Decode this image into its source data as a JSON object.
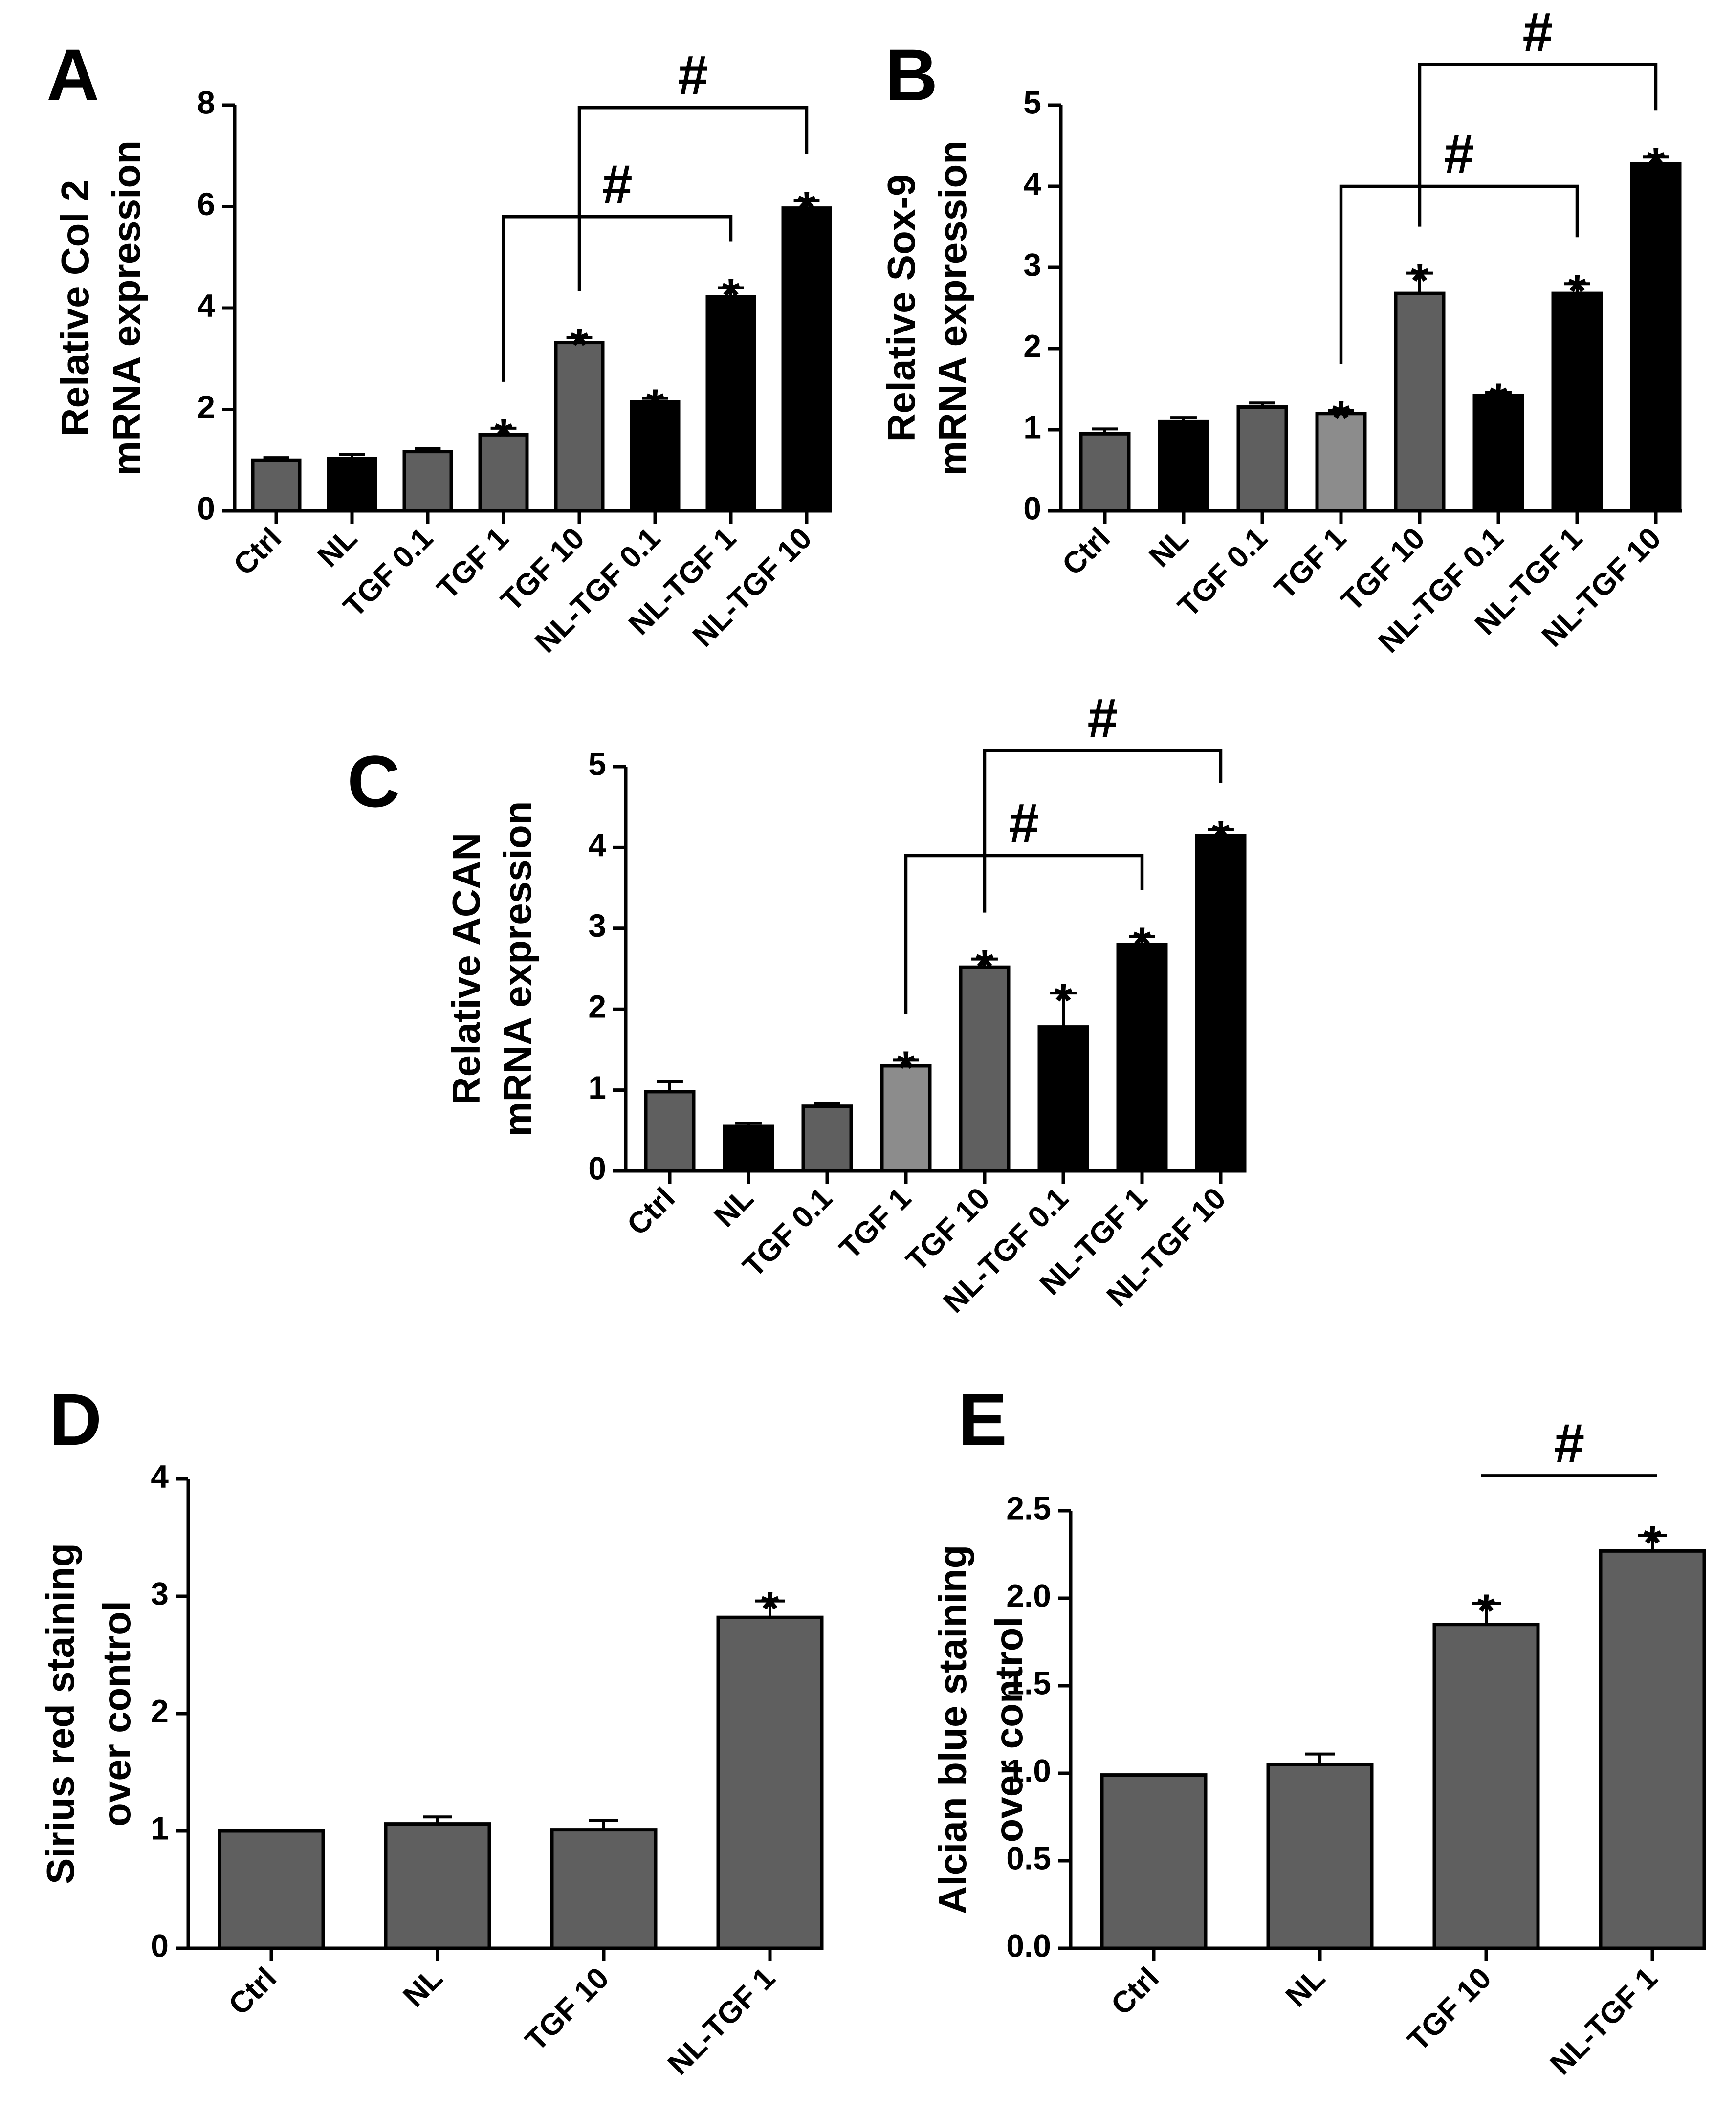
{
  "colors": {
    "white": "#ffffff",
    "dark_gray": "#5f5f5f",
    "black": "#000000",
    "light_gray": "#8c8c8c"
  },
  "chart_data": [
    {
      "id": "A",
      "type": "bar",
      "panel_label": "A",
      "ylabel": [
        "Relative Col 2",
        "mRNA expression"
      ],
      "ylim": [
        0,
        8
      ],
      "yticks": [
        "0",
        "2",
        "4",
        "6",
        "8"
      ],
      "ytick_values": [
        0,
        2,
        4,
        6,
        8
      ],
      "categories": [
        "Ctrl",
        "NL",
        "TGF 0.1",
        "TGF 1",
        "TGF 10",
        "NL-TGF 0.1",
        "NL-TGF 1",
        "NL-TGF 10"
      ],
      "values": [
        1.0,
        1.03,
        1.17,
        1.5,
        3.32,
        2.15,
        4.22,
        5.97
      ],
      "errors": [
        0.05,
        0.08,
        0.06,
        0.13,
        0.1,
        0.07,
        0.18,
        0.15
      ],
      "fills": [
        "dark_gray",
        "black",
        "dark_gray",
        "dark_gray",
        "dark_gray",
        "black",
        "black",
        "black"
      ],
      "star_text": "*",
      "stars": [
        false,
        false,
        false,
        true,
        true,
        true,
        true,
        true
      ],
      "brackets": [
        {
          "from": 3,
          "to": 6,
          "text": "#",
          "y": 5.8
        },
        {
          "from": 4,
          "to": 7,
          "text": "#",
          "y": 7.95
        }
      ]
    },
    {
      "id": "B",
      "type": "bar",
      "panel_label": "B",
      "ylabel": [
        "Relative Sox-9",
        "mRNA expression"
      ],
      "ylim": [
        0,
        5
      ],
      "yticks": [
        "0",
        "1",
        "2",
        "3",
        "4",
        "5"
      ],
      "ytick_values": [
        0,
        1,
        2,
        3,
        4,
        5
      ],
      "categories": [
        "Ctrl",
        "NL",
        "TGF 0.1",
        "TGF 1",
        "TGF 10",
        "NL-TGF 0.1",
        "NL-TGF 1",
        "NL-TGF 10"
      ],
      "values": [
        0.95,
        1.1,
        1.28,
        1.2,
        2.68,
        1.42,
        2.68,
        4.28
      ],
      "errors": [
        0.06,
        0.05,
        0.05,
        0.04,
        0.25,
        0.04,
        0.12,
        0.08
      ],
      "fills": [
        "dark_gray",
        "black",
        "dark_gray",
        "light_gray",
        "dark_gray",
        "black",
        "black",
        "black"
      ],
      "star_text": "*",
      "stars": [
        false,
        false,
        false,
        true,
        true,
        true,
        true,
        true
      ],
      "brackets": [
        {
          "from": 3,
          "to": 6,
          "text": "#",
          "y": 4.0
        },
        {
          "from": 4,
          "to": 7,
          "text": "#",
          "y": 5.5
        }
      ]
    },
    {
      "id": "C",
      "type": "bar",
      "panel_label": "C",
      "ylabel": [
        "Relative ACAN",
        "mRNA expression"
      ],
      "ylim": [
        0,
        5
      ],
      "yticks": [
        "0",
        "1",
        "2",
        "3",
        "4",
        "5"
      ],
      "ytick_values": [
        0,
        1,
        2,
        3,
        4,
        5
      ],
      "categories": [
        "Ctrl",
        "NL",
        "TGF 0.1",
        "TGF 1",
        "TGF 10",
        "NL-TGF 0.1",
        "NL-TGF 1",
        "NL-TGF 10"
      ],
      "values": [
        0.98,
        0.55,
        0.8,
        1.3,
        2.52,
        1.78,
        2.8,
        4.15
      ],
      "errors": [
        0.12,
        0.04,
        0.03,
        0.07,
        0.1,
        0.42,
        0.1,
        0.07
      ],
      "fills": [
        "dark_gray",
        "black",
        "dark_gray",
        "light_gray",
        "dark_gray",
        "black",
        "black",
        "black"
      ],
      "star_text": "*",
      "stars": [
        false,
        false,
        false,
        true,
        true,
        true,
        true,
        true
      ],
      "brackets": [
        {
          "from": 3,
          "to": 6,
          "text": "#",
          "y": 3.9
        },
        {
          "from": 4,
          "to": 7,
          "text": "#",
          "y": 5.2
        }
      ]
    },
    {
      "id": "D",
      "type": "bar",
      "panel_label": "D",
      "ylabel": [
        "Sirius red staining",
        "over control"
      ],
      "ylim": [
        0,
        4
      ],
      "yticks": [
        "0",
        "1",
        "2",
        "3",
        "4"
      ],
      "ytick_values": [
        0,
        1,
        2,
        3,
        4
      ],
      "categories": [
        "Ctrl",
        "NL",
        "TGF 10",
        "NL-TGF 1"
      ],
      "values": [
        1.0,
        1.06,
        1.01,
        2.82
      ],
      "errors": [
        0.0,
        0.06,
        0.08,
        0.14
      ],
      "fills": [
        "dark_gray",
        "dark_gray",
        "dark_gray",
        "dark_gray"
      ],
      "star_text": "*",
      "stars": [
        false,
        false,
        false,
        true
      ],
      "brackets": []
    },
    {
      "id": "E",
      "type": "bar",
      "panel_label": "E",
      "ylabel": [
        "Alcian blue staining",
        "over control"
      ],
      "ylim": [
        0,
        2.5
      ],
      "yticks": [
        "0.0",
        "0.5",
        "1.0",
        "1.5",
        "2.0",
        "2.5"
      ],
      "ytick_values": [
        0,
        0.5,
        1.0,
        1.5,
        2.0,
        2.5
      ],
      "categories": [
        "Ctrl",
        "NL",
        "TGF 10",
        "NL-TGF 1"
      ],
      "values": [
        0.99,
        1.05,
        1.85,
        2.27
      ],
      "errors": [
        0.0,
        0.06,
        0.12,
        0.09
      ],
      "fills": [
        "dark_gray",
        "dark_gray",
        "dark_gray",
        "dark_gray"
      ],
      "star_text": "*",
      "stars": [
        false,
        false,
        true,
        true
      ],
      "brackets": [
        {
          "from": 2,
          "to": 3,
          "text": "#",
          "y": 2.7,
          "flat": true
        }
      ]
    }
  ]
}
